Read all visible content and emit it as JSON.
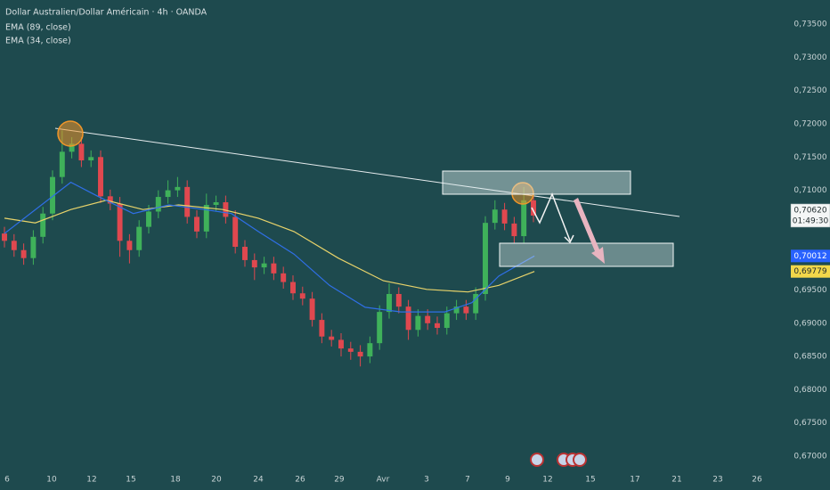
{
  "chart_data": {
    "type": "candlestick",
    "title": "Dollar Australien/Dollar Américain · 4h · OANDA",
    "up_color": "#3fb15a",
    "down_color": "#e0484f",
    "xlim": [
      -0.463,
      81.02
    ],
    "ylim": [
      0.66893,
      0.73863
    ],
    "grid": false,
    "xticks": [
      {
        "value": 0.28,
        "label": "6"
      },
      {
        "value": 4.91,
        "label": "10"
      },
      {
        "value": 9.07,
        "label": "12"
      },
      {
        "value": 13.15,
        "label": "15"
      },
      {
        "value": 17.78,
        "label": "18"
      },
      {
        "value": 22.04,
        "label": "20"
      },
      {
        "value": 26.39,
        "label": "24"
      },
      {
        "value": 30.74,
        "label": "26"
      },
      {
        "value": 34.81,
        "label": "29"
      },
      {
        "value": 39.35,
        "label": "Avr"
      },
      {
        "value": 43.89,
        "label": "3"
      },
      {
        "value": 48.15,
        "label": "7"
      },
      {
        "value": 52.31,
        "label": "9"
      },
      {
        "value": 56.48,
        "label": "12"
      },
      {
        "value": 60.93,
        "label": "15"
      },
      {
        "value": 65.56,
        "label": "17"
      },
      {
        "value": 69.91,
        "label": "21"
      },
      {
        "value": 74.17,
        "label": "23"
      },
      {
        "value": 78.24,
        "label": "26"
      }
    ],
    "yticks": [
      {
        "value": 0.735,
        "label": "0,73500"
      },
      {
        "value": 0.73,
        "label": "0,73000"
      },
      {
        "value": 0.725,
        "label": "0,72500"
      },
      {
        "value": 0.72,
        "label": "0,72000"
      },
      {
        "value": 0.715,
        "label": "0,71500"
      },
      {
        "value": 0.71,
        "label": "0,71000"
      },
      {
        "value": 0.705,
        "label": "0,70500"
      },
      {
        "value": 0.7,
        "label": "0,70000"
      },
      {
        "value": 0.695,
        "label": "0,69500"
      },
      {
        "value": 0.69,
        "label": "0,69000"
      },
      {
        "value": 0.685,
        "label": "0,68500"
      },
      {
        "value": 0.68,
        "label": "0,68000"
      },
      {
        "value": 0.675,
        "label": "0,67500"
      },
      {
        "value": 0.67,
        "label": "0,67000"
      }
    ],
    "open": [
      0.7035,
      0.7024,
      0.701,
      0.6998,
      0.703,
      0.7065,
      0.712,
      0.7158,
      0.717,
      0.7145,
      0.715,
      0.7091,
      0.708,
      0.7024,
      0.701,
      0.7045,
      0.7068,
      0.709,
      0.71,
      0.7105,
      0.706,
      0.7038,
      0.7078,
      0.7082,
      0.706,
      0.7015,
      0.6995,
      0.6984,
      0.699,
      0.6975,
      0.6962,
      0.6945,
      0.6937,
      0.6905,
      0.688,
      0.6875,
      0.6862,
      0.6857,
      0.685,
      0.687,
      0.6917,
      0.6944,
      0.6925,
      0.689,
      0.6911,
      0.69,
      0.6893,
      0.6915,
      0.6925,
      0.6915,
      0.6944,
      0.7051,
      0.7071,
      0.705,
      0.7031,
      0.7085
    ],
    "high": [
      0.7045,
      0.7034,
      0.702,
      0.704,
      0.7075,
      0.713,
      0.719,
      0.718,
      0.718,
      0.716,
      0.716,
      0.7101,
      0.709,
      0.7034,
      0.7055,
      0.7078,
      0.71,
      0.7115,
      0.712,
      0.7115,
      0.707,
      0.7095,
      0.7092,
      0.7092,
      0.707,
      0.7025,
      0.7005,
      0.7,
      0.7,
      0.6985,
      0.6972,
      0.6955,
      0.6947,
      0.6915,
      0.689,
      0.6885,
      0.6872,
      0.6867,
      0.688,
      0.6927,
      0.696,
      0.6954,
      0.6935,
      0.6921,
      0.6921,
      0.691,
      0.6925,
      0.6935,
      0.6935,
      0.6954,
      0.7061,
      0.7085,
      0.7081,
      0.706,
      0.7105,
      0.7095
    ],
    "low": [
      0.7014,
      0.7,
      0.6988,
      0.6988,
      0.702,
      0.7055,
      0.711,
      0.7148,
      0.7135,
      0.7135,
      0.7081,
      0.707,
      0.7,
      0.699,
      0.7,
      0.7035,
      0.7058,
      0.708,
      0.709,
      0.705,
      0.7028,
      0.7028,
      0.7068,
      0.705,
      0.7005,
      0.6985,
      0.6965,
      0.6974,
      0.6965,
      0.6952,
      0.6935,
      0.6927,
      0.6895,
      0.687,
      0.6865,
      0.685,
      0.6845,
      0.6835,
      0.684,
      0.686,
      0.6907,
      0.6915,
      0.6875,
      0.688,
      0.689,
      0.6883,
      0.6883,
      0.6905,
      0.6905,
      0.6905,
      0.6934,
      0.7041,
      0.704,
      0.7021,
      0.7021,
      0.7052
    ],
    "close": [
      0.7024,
      0.701,
      0.6998,
      0.703,
      0.7065,
      0.712,
      0.7158,
      0.717,
      0.7145,
      0.715,
      0.7091,
      0.708,
      0.7024,
      0.701,
      0.7045,
      0.7068,
      0.709,
      0.71,
      0.7105,
      0.706,
      0.7038,
      0.7078,
      0.7082,
      0.706,
      0.7015,
      0.6995,
      0.6984,
      0.699,
      0.6975,
      0.6962,
      0.6945,
      0.6937,
      0.6905,
      0.688,
      0.6875,
      0.6862,
      0.6857,
      0.685,
      0.687,
      0.6917,
      0.6944,
      0.6925,
      0.689,
      0.6911,
      0.69,
      0.6893,
      0.6915,
      0.6925,
      0.6915,
      0.6944,
      0.7051,
      0.7071,
      0.705,
      0.7031,
      0.7085,
      0.7062
    ],
    "last_price": {
      "value": 0.7062,
      "label": "0,70620",
      "countdown": "01:49:30"
    },
    "series": [
      {
        "name": "EMA (89, close)",
        "color": "#e8d36a",
        "x": [
          0,
          3.2,
          6.9,
          10.6,
          14.4,
          18.1,
          22.7,
          26.4,
          30.1,
          34.7,
          39.4,
          43.9,
          48.2,
          51.4,
          55.1
        ],
        "values": [
          0.7058,
          0.7051,
          0.7071,
          0.7085,
          0.7071,
          0.7078,
          0.7071,
          0.7058,
          0.7038,
          0.6998,
          0.6964,
          0.6951,
          0.6947,
          0.6957,
          0.69779
        ],
        "value_labels": [
          null,
          null,
          null,
          null,
          null,
          null,
          null,
          null,
          null,
          null,
          null,
          null,
          null,
          null,
          "0,69779"
        ],
        "label_fill": "#f2d74a"
      },
      {
        "name": "EMA (34, close)",
        "color": "#2f6fe6",
        "x": [
          0,
          6.9,
          9.7,
          13.4,
          17.1,
          20.8,
          23.6,
          26.4,
          30.1,
          33.8,
          37.5,
          41.2,
          45.8,
          48.6,
          51.4,
          55.1
        ],
        "values": [
          0.7035,
          0.7112,
          0.7091,
          0.7065,
          0.7078,
          0.7071,
          0.7065,
          0.7038,
          0.7004,
          0.6957,
          0.6924,
          0.6917,
          0.6917,
          0.6931,
          0.6971,
          0.70012
        ],
        "value_labels": [
          null,
          null,
          null,
          null,
          null,
          null,
          null,
          null,
          null,
          null,
          null,
          null,
          null,
          null,
          null,
          "0,70012"
        ],
        "label_fill": "#2962ff"
      }
    ]
  }
}
